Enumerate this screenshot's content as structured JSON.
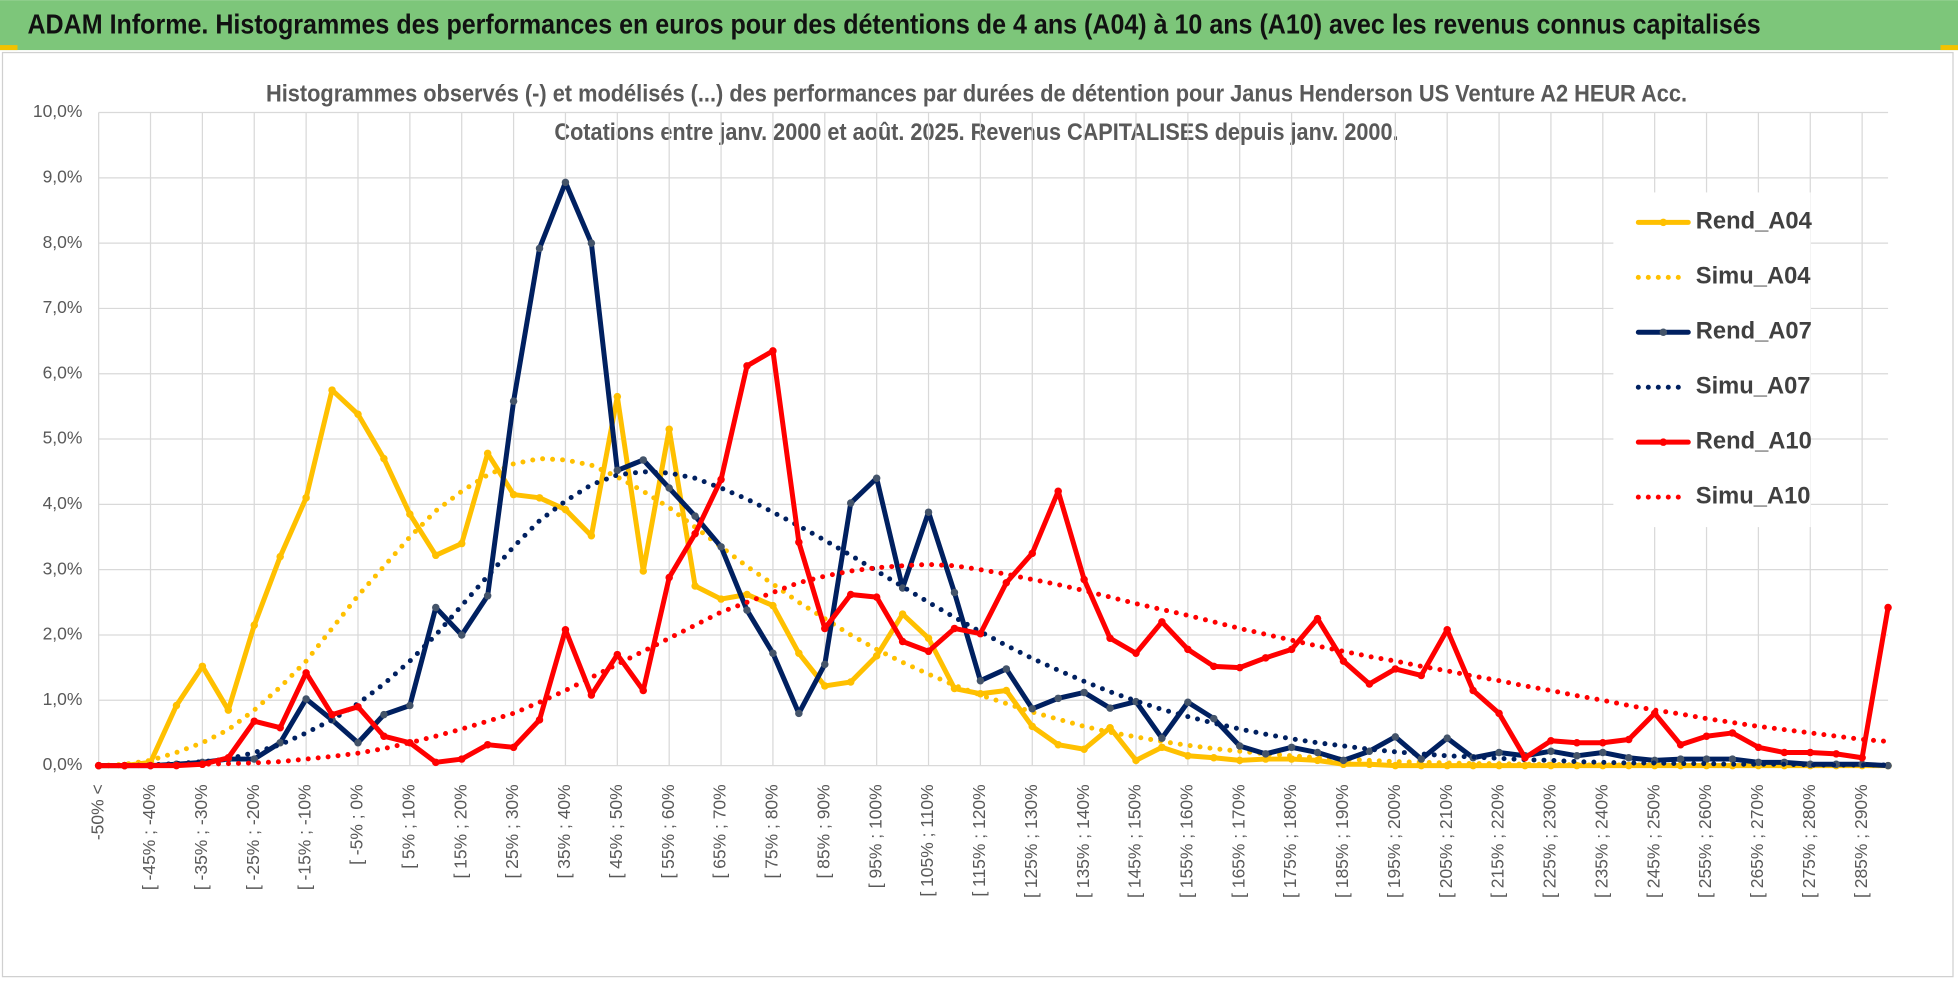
{
  "header": {
    "title": "ADAM Informe. Histogrammes des performances en euros pour des détentions de 4 ans (A04) à 10 ans (A10) avec les revenus connus capitalisés"
  },
  "chart_data": {
    "type": "line",
    "title": "Histogrammes observés (-) et modélisés (...) des performances par durées de détention pour Janus Henderson US Venture A2 HEUR Acc.",
    "subtitle": "Cotations entre janv. 2000 et août. 2025. Revenus CAPITALISES depuis janv. 2000.",
    "categories": [
      "-50% <",
      null,
      "[ -45% ; -40%",
      null,
      "[ -35% ; -30%",
      null,
      "[ -25% ; -20%",
      null,
      "[ -15% ; -10%",
      null,
      "[ -5% ; 0%",
      null,
      "[ 5% ; 10%",
      null,
      "[ 15% ; 20%",
      null,
      "[ 25% ; 30%",
      null,
      "[ 35% ; 40%",
      null,
      "[ 45% ; 50%",
      null,
      "[ 55% ; 60%",
      null,
      "[ 65% ; 70%",
      null,
      "[ 75% ; 80%",
      null,
      "[ 85% ; 90%",
      null,
      "[ 95% ; 100%",
      null,
      "[ 105% ; 110%",
      null,
      "[ 115% ; 120%",
      null,
      "[ 125% ; 130%",
      null,
      "[ 135% ; 140%",
      null,
      "[ 145% ; 150%",
      null,
      "[ 155% ; 160%",
      null,
      "[ 165% ; 170%",
      null,
      "[ 175% ; 180%",
      null,
      "[ 185% ; 190%",
      null,
      "[ 195% ; 200%",
      null,
      "[ 205% ; 210%",
      null,
      "[ 215% ; 220%",
      null,
      "[ 225% ; 230%",
      null,
      "[ 235% ; 240%",
      null,
      "[ 245% ; 250%",
      null,
      "[ 255% ; 260%",
      null,
      "[ 265% ; 270%",
      null,
      "[ 275% ; 280%",
      null,
      "[ 285% ; 290%",
      null
    ],
    "series": [
      {
        "name": "Rend_A04",
        "color": "#FFC000",
        "dash": "solid",
        "markers": true,
        "values": [
          0,
          0,
          0.05,
          0.92,
          1.52,
          0.85,
          2.15,
          3.2,
          4.1,
          5.75,
          5.38,
          4.7,
          3.85,
          3.22,
          3.4,
          4.78,
          4.15,
          4.1,
          3.92,
          3.52,
          5.65,
          2.98,
          5.15,
          2.75,
          2.55,
          2.62,
          2.45,
          1.72,
          1.22,
          1.28,
          1.68,
          2.32,
          1.95,
          1.18,
          1.1,
          1.15,
          0.6,
          0.32,
          0.25,
          0.58,
          0.08,
          0.28,
          0.15,
          0.12,
          0.08,
          0.1,
          0.1,
          0.08,
          0.02,
          0.02,
          0,
          0,
          0,
          0,
          0,
          0,
          0,
          0,
          0,
          0,
          0,
          0,
          0,
          0,
          0,
          0,
          0,
          0,
          0,
          0
        ]
      },
      {
        "name": "Simu_A04",
        "color": "#FFC000",
        "dash": "dotted",
        "markers": false,
        "values": [
          0,
          0.02,
          0.08,
          0.2,
          0.35,
          0.55,
          0.85,
          1.2,
          1.6,
          2.1,
          2.6,
          3.05,
          3.5,
          3.9,
          4.2,
          4.45,
          4.62,
          4.7,
          4.68,
          4.6,
          4.42,
          4.2,
          3.95,
          3.65,
          3.35,
          3.05,
          2.78,
          2.5,
          2.25,
          2.0,
          1.78,
          1.58,
          1.4,
          1.23,
          1.08,
          0.95,
          0.82,
          0.71,
          0.6,
          0.51,
          0.44,
          0.37,
          0.31,
          0.26,
          0.22,
          0.18,
          0.15,
          0.12,
          0.1,
          0.08,
          0.06,
          0.05,
          0.04,
          0.03,
          0.03,
          0.02,
          0.02,
          0.01,
          0.01,
          0.01,
          0.01,
          0,
          0,
          0,
          0,
          0,
          0,
          0,
          0,
          0
        ]
      },
      {
        "name": "Rend_A07",
        "color": "#002060",
        "dash": "solid",
        "markers": true,
        "marker_color": "#44546A",
        "values": [
          0,
          0,
          0,
          0.02,
          0.05,
          0.1,
          0.1,
          0.35,
          1.02,
          0.7,
          0.35,
          0.78,
          0.92,
          2.42,
          2.0,
          2.6,
          5.58,
          7.92,
          8.93,
          8.0,
          4.52,
          4.68,
          4.25,
          3.82,
          3.35,
          2.38,
          1.72,
          0.8,
          1.55,
          4.02,
          4.4,
          2.72,
          3.88,
          2.65,
          1.3,
          1.48,
          0.87,
          1.03,
          1.12,
          0.88,
          0.98,
          0.42,
          0.97,
          0.72,
          0.3,
          0.18,
          0.28,
          0.2,
          0.08,
          0.22,
          0.44,
          0.1,
          0.42,
          0.12,
          0.2,
          0.15,
          0.22,
          0.15,
          0.2,
          0.12,
          0.08,
          0.1,
          0.1,
          0.1,
          0.05,
          0.05,
          0.02,
          0.02,
          0.02,
          0
        ]
      },
      {
        "name": "Simu_A07",
        "color": "#002060",
        "dash": "dotted",
        "markers": false,
        "values": [
          0,
          0,
          0.01,
          0.03,
          0.06,
          0.1,
          0.2,
          0.32,
          0.5,
          0.7,
          0.95,
          1.25,
          1.6,
          2.0,
          2.45,
          2.9,
          3.35,
          3.75,
          4.05,
          4.3,
          4.45,
          4.5,
          4.48,
          4.4,
          4.25,
          4.08,
          3.88,
          3.67,
          3.45,
          3.22,
          2.98,
          2.74,
          2.5,
          2.27,
          2.05,
          1.84,
          1.64,
          1.46,
          1.29,
          1.13,
          0.99,
          0.86,
          0.75,
          0.65,
          0.56,
          0.48,
          0.41,
          0.35,
          0.3,
          0.25,
          0.21,
          0.18,
          0.15,
          0.13,
          0.11,
          0.09,
          0.08,
          0.06,
          0.05,
          0.04,
          0.04,
          0.03,
          0.03,
          0.02,
          0.02,
          0.02,
          0.01,
          0.01,
          0.01,
          0.01
        ]
      },
      {
        "name": "Rend_A10",
        "color": "#FF0000",
        "dash": "solid",
        "markers": true,
        "values": [
          0,
          0,
          0,
          0,
          0.02,
          0.12,
          0.68,
          0.58,
          1.42,
          0.78,
          0.9,
          0.45,
          0.35,
          0.05,
          0.1,
          0.32,
          0.28,
          0.7,
          2.08,
          1.08,
          1.7,
          1.15,
          2.88,
          3.55,
          4.38,
          6.12,
          6.35,
          3.42,
          2.1,
          2.62,
          2.58,
          1.9,
          1.75,
          2.1,
          2.02,
          2.8,
          3.25,
          4.2,
          2.85,
          1.95,
          1.72,
          2.2,
          1.78,
          1.52,
          1.5,
          1.65,
          1.78,
          2.25,
          1.6,
          1.25,
          1.48,
          1.38,
          2.08,
          1.15,
          0.8,
          0.12,
          0.38,
          0.35,
          0.35,
          0.4,
          0.8,
          0.32,
          0.45,
          0.5,
          0.28,
          0.2,
          0.2,
          0.18,
          0.12,
          2.42
        ]
      },
      {
        "name": "Simu_A10",
        "color": "#FF0000",
        "dash": "dotted",
        "markers": false,
        "values": [
          0,
          0,
          0,
          0.01,
          0.02,
          0.03,
          0.04,
          0.06,
          0.1,
          0.14,
          0.19,
          0.26,
          0.35,
          0.45,
          0.56,
          0.68,
          0.8,
          0.97,
          1.15,
          1.35,
          1.55,
          1.75,
          1.95,
          2.15,
          2.35,
          2.5,
          2.65,
          2.8,
          2.9,
          2.98,
          3.03,
          3.06,
          3.08,
          3.06,
          3.0,
          2.93,
          2.85,
          2.77,
          2.68,
          2.58,
          2.48,
          2.39,
          2.3,
          2.2,
          2.1,
          2.01,
          1.92,
          1.83,
          1.75,
          1.67,
          1.6,
          1.52,
          1.45,
          1.37,
          1.3,
          1.22,
          1.15,
          1.07,
          1.0,
          0.92,
          0.85,
          0.79,
          0.72,
          0.66,
          0.6,
          0.55,
          0.5,
          0.45,
          0.4,
          0.37
        ]
      }
    ],
    "ylim": [
      0,
      10
    ],
    "yticks": [
      {
        "value": 0,
        "label": "0,0%"
      },
      {
        "value": 1,
        "label": "1,0%"
      },
      {
        "value": 2,
        "label": "2,0%"
      },
      {
        "value": 3,
        "label": "3,0%"
      },
      {
        "value": 4,
        "label": "4,0%"
      },
      {
        "value": 5,
        "label": "5,0%"
      },
      {
        "value": 6,
        "label": "6,0%"
      },
      {
        "value": 7,
        "label": "7,0%"
      },
      {
        "value": 8,
        "label": "8,0%"
      },
      {
        "value": 9,
        "label": "9,0%"
      },
      {
        "value": 10,
        "label": "10,0%"
      }
    ],
    "grid": true,
    "legend": "right"
  }
}
